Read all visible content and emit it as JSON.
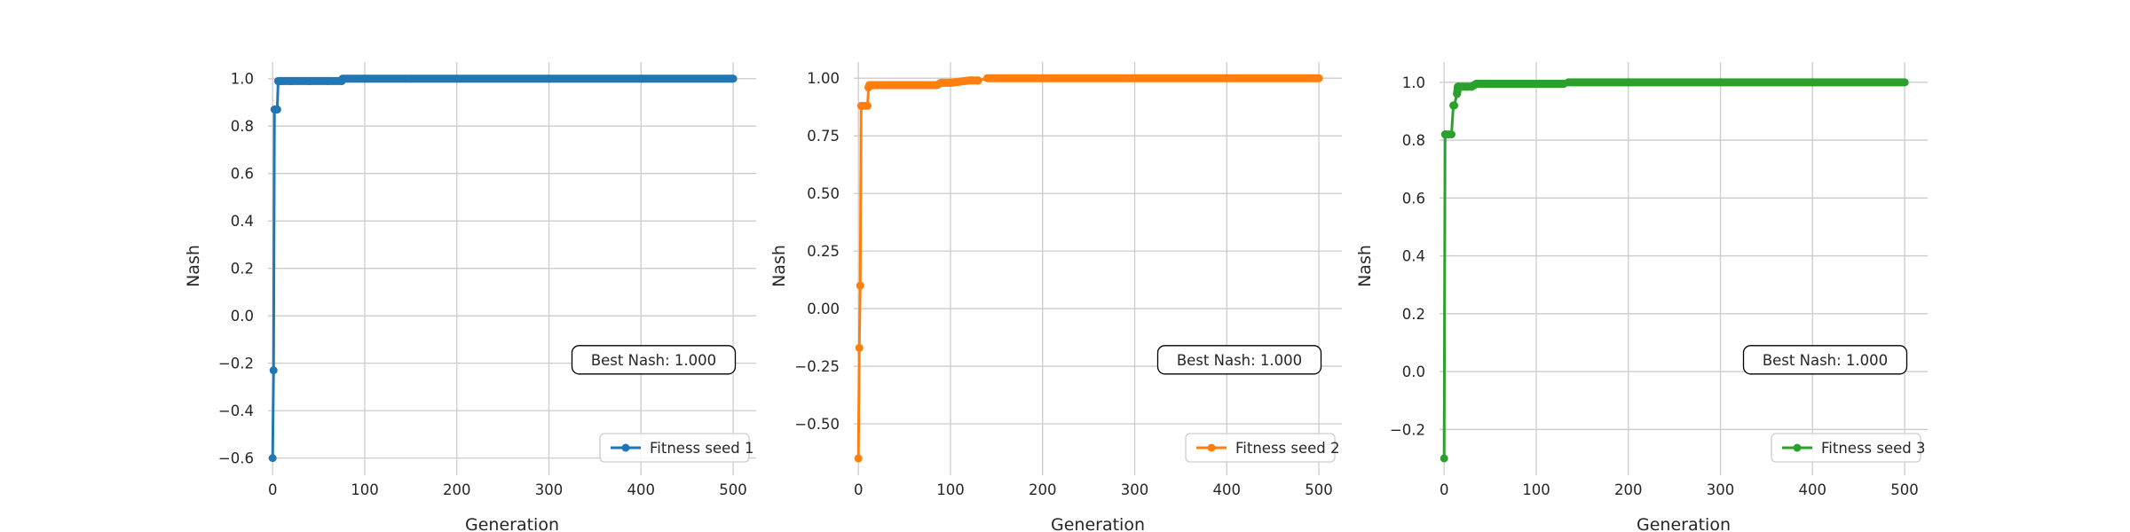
{
  "chart_data": [
    {
      "type": "line",
      "xlabel": "Generation",
      "ylabel": "Nash",
      "xlim": [
        -5,
        525
      ],
      "ylim": [
        -0.65,
        1.07
      ],
      "xticks": [
        0,
        100,
        200,
        300,
        400,
        500
      ],
      "yticks": [
        -0.6,
        -0.4,
        -0.2,
        0.0,
        0.2,
        0.4,
        0.6,
        0.8,
        1.0
      ],
      "ytick_decimals": 1,
      "grid": true,
      "legend_position": "bottom-right",
      "annotation": "Best Nash: 1.000",
      "color": "#1f77b4",
      "series": [
        {
          "name": "Fitness seed 1",
          "x": [
            0,
            1,
            2,
            3,
            4,
            5,
            6,
            8,
            10,
            20,
            40,
            60,
            75,
            76,
            100,
            150,
            200,
            300,
            400,
            500
          ],
          "y": [
            -0.6,
            -0.23,
            0.87,
            0.87,
            0.87,
            0.87,
            0.99,
            0.99,
            0.99,
            0.99,
            0.99,
            0.99,
            0.99,
            1.0,
            1.0,
            1.0,
            1.0,
            1.0,
            1.0,
            1.0
          ]
        }
      ]
    },
    {
      "type": "line",
      "xlabel": "Generation",
      "ylabel": "Nash",
      "xlim": [
        -5,
        525
      ],
      "ylim": [
        -0.7,
        1.07
      ],
      "xticks": [
        0,
        100,
        200,
        300,
        400,
        500
      ],
      "yticks": [
        -0.5,
        -0.25,
        0.0,
        0.25,
        0.5,
        0.75,
        1.0
      ],
      "ytick_decimals": 2,
      "grid": true,
      "legend_position": "bottom-right",
      "annotation": "Best Nash: 1.000",
      "color": "#ff7f0e",
      "series": [
        {
          "name": "Fitness seed 2",
          "x": [
            0,
            1,
            2,
            3,
            5,
            8,
            10,
            11,
            12,
            15,
            20,
            50,
            85,
            90,
            95,
            100,
            110,
            120,
            130,
            140,
            200,
            300,
            400,
            500
          ],
          "y": [
            -0.65,
            -0.17,
            0.1,
            0.88,
            0.88,
            0.88,
            0.88,
            0.96,
            0.97,
            0.97,
            0.97,
            0.97,
            0.97,
            0.98,
            0.98,
            0.98,
            0.985,
            0.99,
            0.99,
            1.0,
            1.0,
            1.0,
            1.0,
            1.0
          ]
        }
      ]
    },
    {
      "type": "line",
      "xlabel": "Generation",
      "ylabel": "Nash",
      "xlim": [
        -5,
        525
      ],
      "ylim": [
        -0.34,
        1.07
      ],
      "xticks": [
        0,
        100,
        200,
        300,
        400,
        500
      ],
      "yticks": [
        -0.2,
        0.0,
        0.2,
        0.4,
        0.6,
        0.8,
        1.0
      ],
      "ytick_decimals": 1,
      "grid": true,
      "legend_position": "bottom-right",
      "annotation": "Best Nash: 1.000",
      "color": "#2ca02c",
      "series": [
        {
          "name": "Fitness seed 3",
          "x": [
            0,
            1,
            2,
            5,
            8,
            10,
            11,
            14,
            15,
            20,
            25,
            30,
            35,
            50,
            100,
            130,
            135,
            200,
            300,
            400,
            500
          ],
          "y": [
            -0.3,
            0.82,
            0.82,
            0.82,
            0.82,
            0.92,
            0.92,
            0.96,
            0.985,
            0.985,
            0.985,
            0.985,
            0.995,
            0.995,
            0.995,
            0.995,
            1.0,
            1.0,
            1.0,
            1.0,
            1.0
          ]
        }
      ]
    }
  ]
}
